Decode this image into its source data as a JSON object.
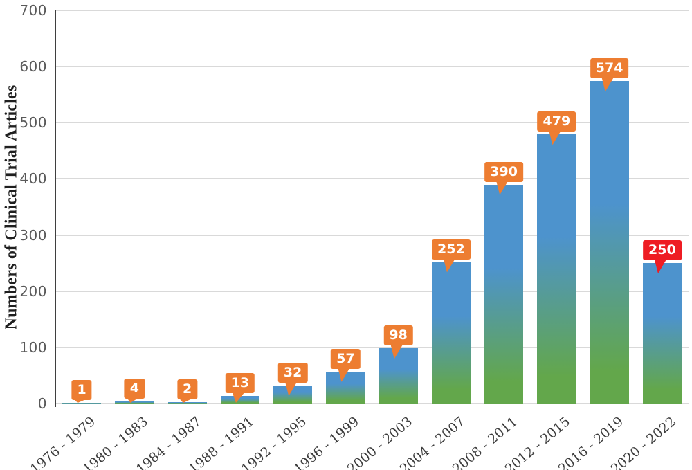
{
  "chart_data": {
    "type": "bar",
    "title": "",
    "ylabel": "Numbers of Clinical Trial Articles",
    "xlabel": "",
    "categories": [
      "1976 - 1979",
      "1980 - 1983",
      "1984 - 1987",
      "1988 - 1991",
      "1992 - 1995",
      "1996 - 1999",
      "2000 - 2003",
      "2004 - 2007",
      "2008 - 2011",
      "2012 - 2015",
      "2016 - 2019",
      "2020 - 2022"
    ],
    "values": [
      1,
      4,
      2,
      13,
      32,
      57,
      98,
      252,
      390,
      479,
      574,
      250
    ],
    "data_labels": [
      "1",
      "4",
      "2",
      "13",
      "32",
      "57",
      "98",
      "252",
      "390",
      "479",
      "574",
      "250"
    ],
    "data_label_colors": [
      "#ED7D31",
      "#ED7D31",
      "#ED7D31",
      "#ED7D31",
      "#ED7D31",
      "#ED7D31",
      "#ED7D31",
      "#ED7D31",
      "#ED7D31",
      "#ED7D31",
      "#ED7D31",
      "#EE1C23"
    ],
    "data_label_text_color": "#FFFFFF",
    "ylim": [
      0,
      700
    ],
    "yticks": [
      0,
      100,
      200,
      300,
      400,
      500,
      600,
      700
    ],
    "grid": true,
    "legend_position": "none",
    "bar_gradient_top_color": "#4D93CD",
    "bar_gradient_bottom_color": "#63A74B"
  },
  "style": {
    "background_color": "#FFFFFF",
    "grid_color": "#D9D9D9",
    "axis_line_color": "#3F3F3F",
    "y_tick_color": "#595959",
    "x_tick_color": "#3C3C3C",
    "y_title_color": "#1F1F1F"
  }
}
